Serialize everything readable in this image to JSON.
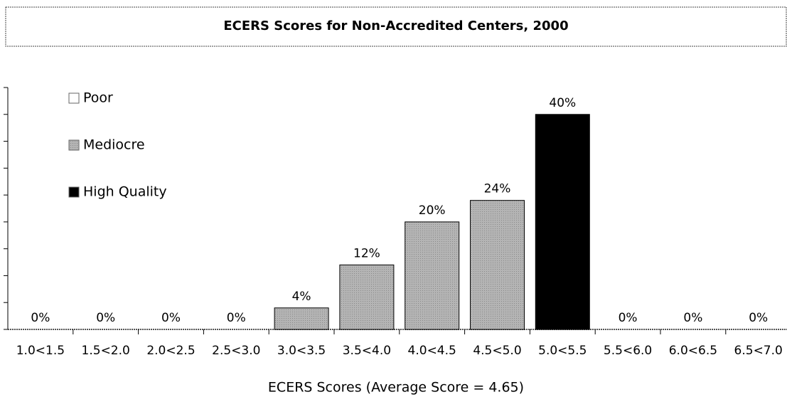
{
  "chart_data": {
    "type": "bar",
    "title": "ECERS Scores for Non-Accredited Centers, 2000",
    "x_label": "ECERS Scores (Average Score = 4.65)",
    "categories": [
      "1.0<1.5",
      "1.5<2.0",
      "2.0<2.5",
      "2.5<3.0",
      "3.0<3.5",
      "3.5<4.0",
      "4.0<4.5",
      "4.5<5.0",
      "5.0<5.5",
      "5.5<6.0",
      "6.0<6.5",
      "6.5<7.0"
    ],
    "values": [
      0,
      0,
      0,
      0,
      4,
      12,
      20,
      24,
      40,
      0,
      0,
      0
    ],
    "value_labels": [
      "0%",
      "0%",
      "0%",
      "0%",
      "4%",
      "12%",
      "20%",
      "24%",
      "40%",
      "0%",
      "0%",
      "0%"
    ],
    "colors": [
      "#ffffff",
      "#ffffff",
      "#ffffff",
      "#ffffff",
      "#a8a8a8",
      "#a8a8a8",
      "#a8a8a8",
      "#a8a8a8",
      "#000000",
      "#000000",
      "#000000",
      "#000000"
    ],
    "legend": [
      {
        "name": "Poor",
        "color": "#ffffff"
      },
      {
        "name": "Mediocre",
        "color": "#a8a8a8"
      },
      {
        "name": "High Quality",
        "color": "#000000"
      }
    ],
    "ylim": [
      0,
      45
    ],
    "yticks": [
      0,
      5,
      10,
      15,
      20,
      25,
      30,
      35,
      40,
      45
    ]
  }
}
